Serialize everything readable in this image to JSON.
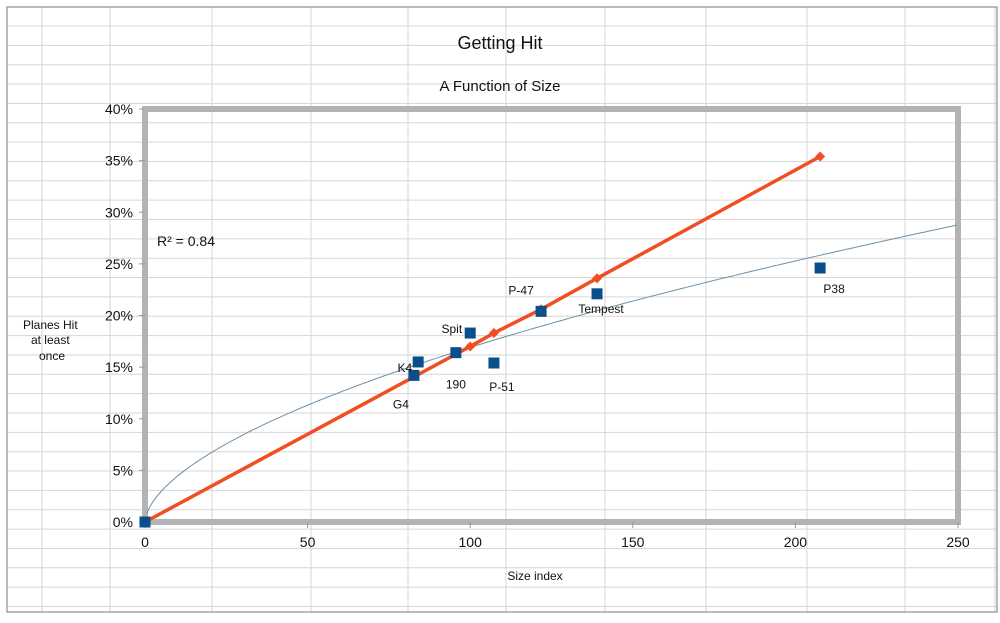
{
  "chart_data": {
    "type": "scatter",
    "title": "Getting Hit",
    "subtitle": "A Function of Size",
    "xlabel": "Size index",
    "ylabel": [
      "Planes Hit",
      "at least",
      "once"
    ],
    "xlim": [
      0,
      250
    ],
    "ylim": [
      0,
      0.4
    ],
    "x_ticks": [
      "0",
      "50",
      "100",
      "150",
      "200",
      "250"
    ],
    "y_ticks": [
      "0%",
      "5%",
      "10%",
      "15%",
      "20%",
      "25%",
      "30%",
      "35%",
      "40%"
    ],
    "grid": false,
    "annotation": "R² = 0.84",
    "points": [
      {
        "label": "",
        "x": 0,
        "y": 0.0
      },
      {
        "label": "G4",
        "x": 82.7,
        "y": 0.142
      },
      {
        "label": "K4",
        "x": 84,
        "y": 0.155
      },
      {
        "label": "190",
        "x": 95.6,
        "y": 0.164
      },
      {
        "label": "Spit",
        "x": 100,
        "y": 0.183
      },
      {
        "label": "P-51",
        "x": 107.3,
        "y": 0.154
      },
      {
        "label": "P-47",
        "x": 121.8,
        "y": 0.204
      },
      {
        "label": "Tempest",
        "x": 139,
        "y": 0.221
      },
      {
        "label": "P38",
        "x": 207.6,
        "y": 0.246
      }
    ],
    "line_series": {
      "x": [
        0,
        100,
        107.3,
        121.8,
        139,
        207.6
      ],
      "y": [
        0.0,
        0.17,
        0.183,
        0.206,
        0.236,
        0.354
      ]
    },
    "trendline": {
      "type": "power",
      "a": 0.0117,
      "b": 0.58
    },
    "colors": {
      "points": "#0b4f8a",
      "line": "#f04e23",
      "trend": "#6e8fa6",
      "frame": "#b3b3b3"
    }
  }
}
